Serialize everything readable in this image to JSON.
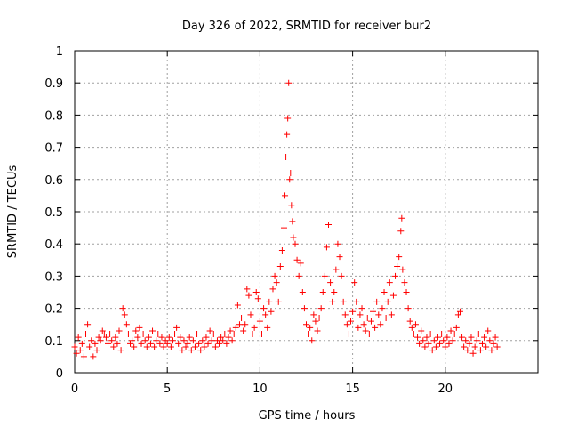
{
  "chart_data": {
    "type": "scatter",
    "title": "Day 326 of 2022, SRMTID for receiver bur2",
    "xlabel": "GPS time / hours",
    "ylabel": "SRMTID / TECUs",
    "xlim": [
      0,
      25
    ],
    "ylim": [
      0,
      1
    ],
    "x_ticks": [
      0,
      5,
      10,
      15,
      20
    ],
    "x_tick_labels": [
      "0",
      "5",
      "10",
      "15",
      "20"
    ],
    "y_ticks": [
      0,
      0.1,
      0.2,
      0.3,
      0.4,
      0.5,
      0.6,
      0.7,
      0.8,
      0.9,
      1
    ],
    "y_tick_labels": [
      "0",
      "0.1",
      "0.2",
      "0.3",
      "0.4",
      "0.5",
      "0.6",
      "0.7",
      "0.8",
      "0.9",
      "1"
    ],
    "grid": true,
    "marker": "+",
    "color": "#ff0000",
    "series": [
      {
        "name": "bur2",
        "points": [
          [
            0.0,
            0.08
          ],
          [
            0.1,
            0.06
          ],
          [
            0.2,
            0.11
          ],
          [
            0.3,
            0.07
          ],
          [
            0.4,
            0.09
          ],
          [
            0.5,
            0.05
          ],
          [
            0.6,
            0.12
          ],
          [
            0.7,
            0.15
          ],
          [
            0.8,
            0.08
          ],
          [
            0.9,
            0.1
          ],
          [
            1.0,
            0.05
          ],
          [
            1.1,
            0.09
          ],
          [
            1.2,
            0.07
          ],
          [
            1.3,
            0.11
          ],
          [
            1.4,
            0.1
          ],
          [
            1.5,
            0.13
          ],
          [
            1.6,
            0.12
          ],
          [
            1.7,
            0.11
          ],
          [
            1.8,
            0.09
          ],
          [
            1.9,
            0.12
          ],
          [
            2.0,
            0.1
          ],
          [
            2.1,
            0.08
          ],
          [
            2.2,
            0.11
          ],
          [
            2.3,
            0.09
          ],
          [
            2.4,
            0.13
          ],
          [
            2.5,
            0.07
          ],
          [
            2.6,
            0.2
          ],
          [
            2.7,
            0.18
          ],
          [
            2.8,
            0.15
          ],
          [
            2.9,
            0.12
          ],
          [
            3.0,
            0.09
          ],
          [
            3.1,
            0.1
          ],
          [
            3.2,
            0.08
          ],
          [
            3.3,
            0.13
          ],
          [
            3.4,
            0.11
          ],
          [
            3.5,
            0.14
          ],
          [
            3.6,
            0.09
          ],
          [
            3.7,
            0.12
          ],
          [
            3.8,
            0.1
          ],
          [
            3.9,
            0.08
          ],
          [
            4.0,
            0.11
          ],
          [
            4.1,
            0.09
          ],
          [
            4.2,
            0.13
          ],
          [
            4.3,
            0.08
          ],
          [
            4.4,
            0.1
          ],
          [
            4.5,
            0.12
          ],
          [
            4.6,
            0.09
          ],
          [
            4.7,
            0.11
          ],
          [
            4.8,
            0.08
          ],
          [
            4.9,
            0.1
          ],
          [
            5.0,
            0.09
          ],
          [
            5.1,
            0.11
          ],
          [
            5.2,
            0.08
          ],
          [
            5.3,
            0.1
          ],
          [
            5.4,
            0.12
          ],
          [
            5.5,
            0.14
          ],
          [
            5.6,
            0.09
          ],
          [
            5.7,
            0.11
          ],
          [
            5.8,
            0.07
          ],
          [
            5.9,
            0.1
          ],
          [
            6.0,
            0.08
          ],
          [
            6.1,
            0.09
          ],
          [
            6.2,
            0.11
          ],
          [
            6.3,
            0.07
          ],
          [
            6.4,
            0.1
          ],
          [
            6.5,
            0.08
          ],
          [
            6.6,
            0.12
          ],
          [
            6.7,
            0.09
          ],
          [
            6.8,
            0.07
          ],
          [
            6.9,
            0.1
          ],
          [
            7.0,
            0.08
          ],
          [
            7.1,
            0.11
          ],
          [
            7.2,
            0.09
          ],
          [
            7.3,
            0.13
          ],
          [
            7.4,
            0.1
          ],
          [
            7.5,
            0.12
          ],
          [
            7.6,
            0.08
          ],
          [
            7.7,
            0.1
          ],
          [
            7.8,
            0.09
          ],
          [
            7.9,
            0.11
          ],
          [
            8.0,
            0.1
          ],
          [
            8.1,
            0.12
          ],
          [
            8.2,
            0.09
          ],
          [
            8.3,
            0.11
          ],
          [
            8.4,
            0.13
          ],
          [
            8.5,
            0.1
          ],
          [
            8.6,
            0.12
          ],
          [
            8.7,
            0.14
          ],
          [
            8.8,
            0.21
          ],
          [
            8.9,
            0.15
          ],
          [
            9.0,
            0.17
          ],
          [
            9.1,
            0.13
          ],
          [
            9.2,
            0.15
          ],
          [
            9.3,
            0.26
          ],
          [
            9.4,
            0.24
          ],
          [
            9.5,
            0.18
          ],
          [
            9.6,
            0.12
          ],
          [
            9.7,
            0.14
          ],
          [
            9.8,
            0.25
          ],
          [
            9.9,
            0.23
          ],
          [
            10.0,
            0.16
          ],
          [
            10.1,
            0.12
          ],
          [
            10.2,
            0.2
          ],
          [
            10.3,
            0.18
          ],
          [
            10.4,
            0.14
          ],
          [
            10.5,
            0.22
          ],
          [
            10.6,
            0.19
          ],
          [
            10.7,
            0.26
          ],
          [
            10.8,
            0.3
          ],
          [
            10.9,
            0.28
          ],
          [
            11.0,
            0.22
          ],
          [
            11.1,
            0.33
          ],
          [
            11.2,
            0.38
          ],
          [
            11.3,
            0.45
          ],
          [
            11.35,
            0.55
          ],
          [
            11.4,
            0.67
          ],
          [
            11.45,
            0.74
          ],
          [
            11.5,
            0.79
          ],
          [
            11.55,
            0.9
          ],
          [
            11.6,
            0.6
          ],
          [
            11.65,
            0.62
          ],
          [
            11.7,
            0.52
          ],
          [
            11.75,
            0.47
          ],
          [
            11.8,
            0.42
          ],
          [
            11.9,
            0.4
          ],
          [
            12.0,
            0.35
          ],
          [
            12.1,
            0.3
          ],
          [
            12.2,
            0.34
          ],
          [
            12.3,
            0.25
          ],
          [
            12.4,
            0.2
          ],
          [
            12.5,
            0.15
          ],
          [
            12.6,
            0.12
          ],
          [
            12.7,
            0.14
          ],
          [
            12.8,
            0.1
          ],
          [
            12.9,
            0.18
          ],
          [
            13.0,
            0.16
          ],
          [
            13.1,
            0.13
          ],
          [
            13.2,
            0.17
          ],
          [
            13.3,
            0.2
          ],
          [
            13.4,
            0.25
          ],
          [
            13.5,
            0.3
          ],
          [
            13.6,
            0.39
          ],
          [
            13.7,
            0.46
          ],
          [
            13.8,
            0.28
          ],
          [
            13.9,
            0.22
          ],
          [
            14.0,
            0.25
          ],
          [
            14.1,
            0.32
          ],
          [
            14.2,
            0.4
          ],
          [
            14.3,
            0.36
          ],
          [
            14.4,
            0.3
          ],
          [
            14.5,
            0.22
          ],
          [
            14.6,
            0.18
          ],
          [
            14.7,
            0.15
          ],
          [
            14.8,
            0.12
          ],
          [
            14.9,
            0.16
          ],
          [
            15.0,
            0.19
          ],
          [
            15.1,
            0.28
          ],
          [
            15.2,
            0.22
          ],
          [
            15.3,
            0.14
          ],
          [
            15.4,
            0.18
          ],
          [
            15.5,
            0.2
          ],
          [
            15.6,
            0.15
          ],
          [
            15.7,
            0.13
          ],
          [
            15.8,
            0.17
          ],
          [
            15.9,
            0.12
          ],
          [
            16.0,
            0.16
          ],
          [
            16.1,
            0.19
          ],
          [
            16.2,
            0.14
          ],
          [
            16.3,
            0.22
          ],
          [
            16.4,
            0.18
          ],
          [
            16.5,
            0.15
          ],
          [
            16.6,
            0.2
          ],
          [
            16.7,
            0.25
          ],
          [
            16.8,
            0.17
          ],
          [
            16.9,
            0.22
          ],
          [
            17.0,
            0.28
          ],
          [
            17.1,
            0.18
          ],
          [
            17.2,
            0.24
          ],
          [
            17.3,
            0.3
          ],
          [
            17.4,
            0.33
          ],
          [
            17.5,
            0.36
          ],
          [
            17.6,
            0.44
          ],
          [
            17.65,
            0.48
          ],
          [
            17.7,
            0.32
          ],
          [
            17.8,
            0.28
          ],
          [
            17.9,
            0.25
          ],
          [
            18.0,
            0.2
          ],
          [
            18.1,
            0.16
          ],
          [
            18.2,
            0.14
          ],
          [
            18.3,
            0.12
          ],
          [
            18.4,
            0.15
          ],
          [
            18.5,
            0.11
          ],
          [
            18.6,
            0.09
          ],
          [
            18.7,
            0.13
          ],
          [
            18.8,
            0.1
          ],
          [
            18.9,
            0.08
          ],
          [
            19.0,
            0.11
          ],
          [
            19.1,
            0.09
          ],
          [
            19.2,
            0.12
          ],
          [
            19.3,
            0.07
          ],
          [
            19.4,
            0.1
          ],
          [
            19.5,
            0.08
          ],
          [
            19.6,
            0.11
          ],
          [
            19.7,
            0.09
          ],
          [
            19.8,
            0.12
          ],
          [
            19.9,
            0.1
          ],
          [
            20.0,
            0.08
          ],
          [
            20.1,
            0.11
          ],
          [
            20.2,
            0.09
          ],
          [
            20.3,
            0.13
          ],
          [
            20.4,
            0.1
          ],
          [
            20.5,
            0.12
          ],
          [
            20.6,
            0.14
          ],
          [
            20.7,
            0.18
          ],
          [
            20.8,
            0.19
          ],
          [
            20.9,
            0.11
          ],
          [
            21.0,
            0.08
          ],
          [
            21.1,
            0.1
          ],
          [
            21.2,
            0.07
          ],
          [
            21.3,
            0.09
          ],
          [
            21.4,
            0.11
          ],
          [
            21.5,
            0.06
          ],
          [
            21.6,
            0.08
          ],
          [
            21.7,
            0.1
          ],
          [
            21.8,
            0.12
          ],
          [
            21.9,
            0.07
          ],
          [
            22.0,
            0.09
          ],
          [
            22.1,
            0.11
          ],
          [
            22.2,
            0.08
          ],
          [
            22.3,
            0.13
          ],
          [
            22.4,
            0.1
          ],
          [
            22.5,
            0.07
          ],
          [
            22.6,
            0.09
          ],
          [
            22.7,
            0.11
          ],
          [
            22.8,
            0.08
          ]
        ]
      }
    ]
  }
}
